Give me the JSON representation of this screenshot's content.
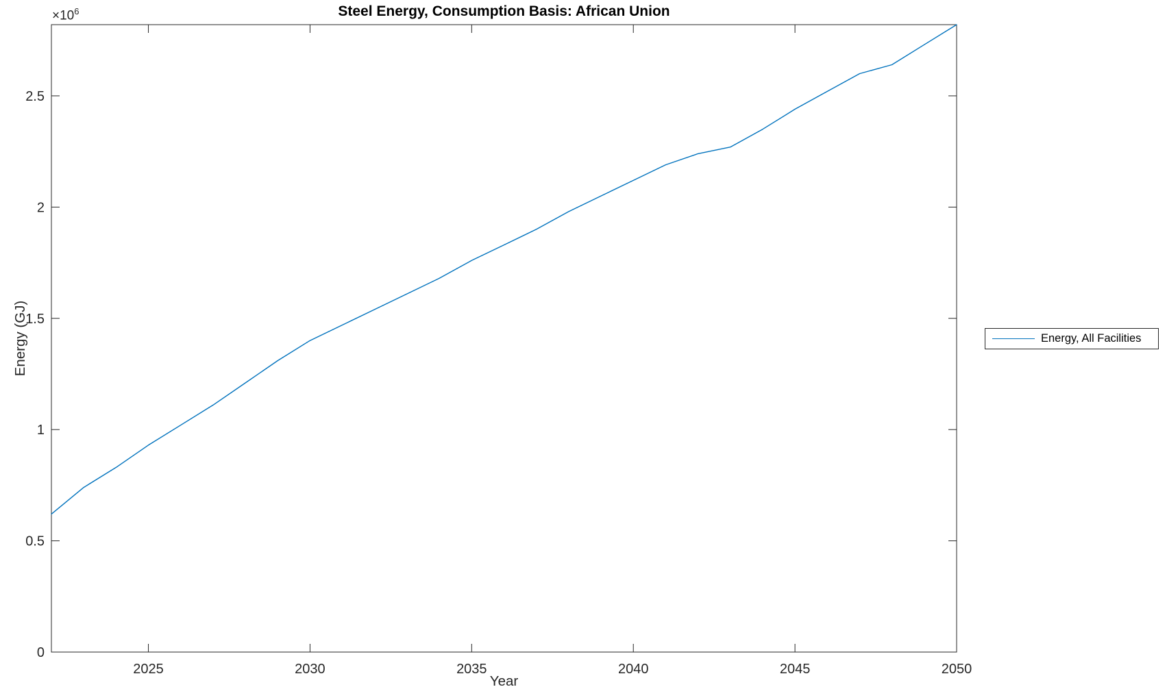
{
  "figure": {
    "offset_label": {
      "base": "×10",
      "exponent": "6"
    }
  },
  "chart_data": {
    "type": "line",
    "title": "Steel Energy, Consumption Basis: African Union",
    "xlabel": "Year",
    "ylabel": "Energy (GJ)",
    "y_unit_multiplier": "1e6 GJ (axis offset ×10^6)",
    "x": [
      2022,
      2023,
      2024,
      2025,
      2026,
      2027,
      2028,
      2029,
      2030,
      2031,
      2032,
      2033,
      2034,
      2035,
      2036,
      2037,
      2038,
      2039,
      2040,
      2041,
      2042,
      2043,
      2044,
      2045,
      2046,
      2047,
      2048,
      2049,
      2050
    ],
    "series": [
      {
        "name": "Energy, All Facilities",
        "color": "#0072BD",
        "values_1e6_GJ": [
          0.62,
          0.74,
          0.83,
          0.93,
          1.02,
          1.11,
          1.21,
          1.31,
          1.4,
          1.47,
          1.54,
          1.61,
          1.68,
          1.76,
          1.83,
          1.9,
          1.98,
          2.05,
          2.12,
          2.19,
          2.24,
          2.27,
          2.35,
          2.44,
          2.52,
          2.6,
          2.64,
          2.73,
          2.82
        ]
      }
    ],
    "xlim": [
      2022,
      2050
    ],
    "ylim_1e6": [
      0,
      2.82
    ],
    "xticks": [
      2025,
      2030,
      2035,
      2040,
      2045,
      2050
    ],
    "yticks_1e6": [
      0,
      0.5,
      1,
      1.5,
      2,
      2.5
    ],
    "grid": false,
    "legend": {
      "position": "outside-right",
      "entries": [
        "Energy, All Facilities"
      ]
    }
  },
  "colors": {
    "line": "#0072BD",
    "axis": "#262626",
    "title": "#000000",
    "background": "#ffffff"
  }
}
